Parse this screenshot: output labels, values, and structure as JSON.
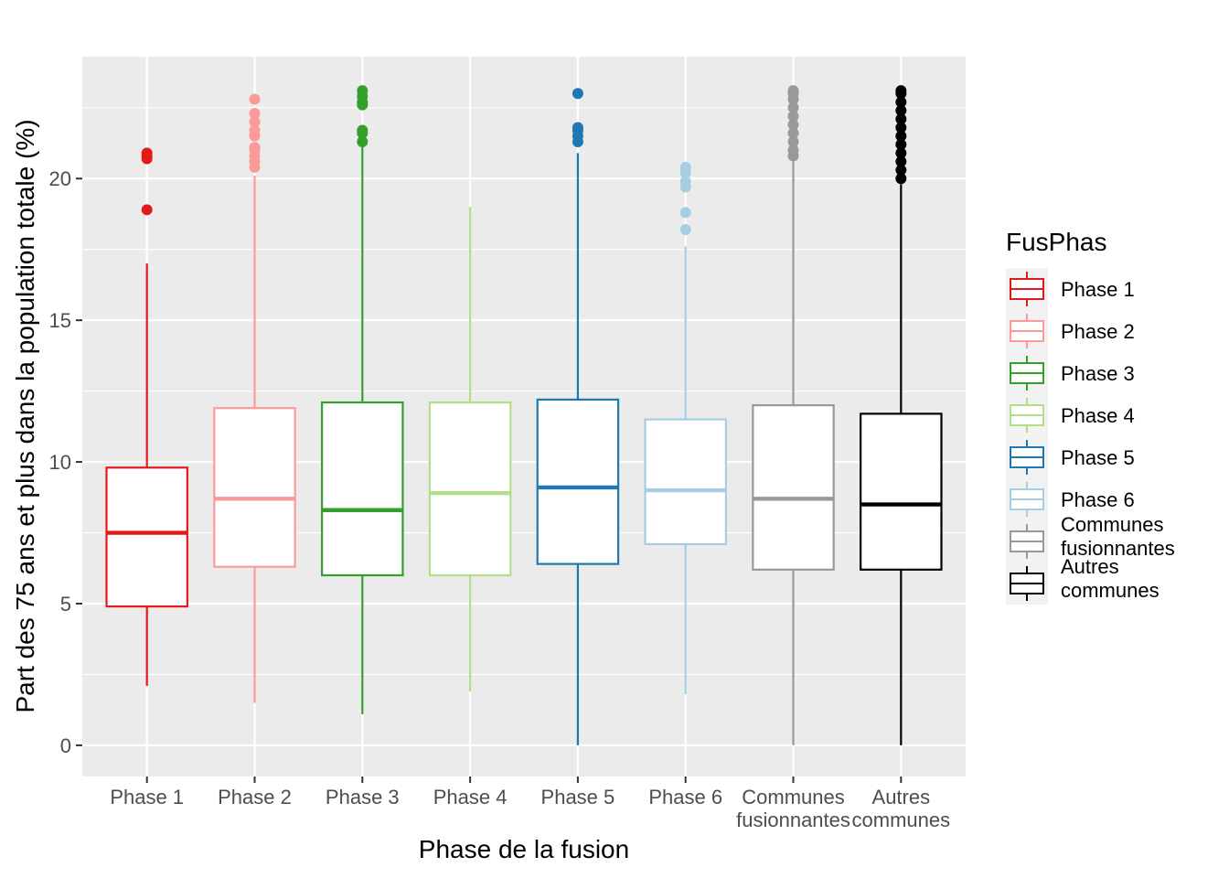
{
  "chart_data": {
    "type": "boxplot",
    "xlabel": "Phase de la fusion",
    "ylabel": "Part des 75 ans et plus dans la population totale (%)",
    "ylim": [
      -1.1,
      24.3
    ],
    "yticks": [
      0,
      5,
      10,
      15,
      20
    ],
    "grid": true,
    "legend": {
      "title": "FusPhas",
      "placement": "right",
      "entries": [
        [
          "Phase 1"
        ],
        [
          "Phase 2"
        ],
        [
          "Phase 3"
        ],
        [
          "Phase 4"
        ],
        [
          "Phase 5"
        ],
        [
          "Phase 6"
        ],
        [
          "Communes",
          "fusionnantes"
        ],
        [
          "Autres",
          "communes"
        ]
      ]
    },
    "categories": [
      {
        "label": [
          "Phase 1"
        ],
        "color": "#E31A1C",
        "whisker_low": 2.1,
        "q1": 4.9,
        "median": 7.5,
        "q3": 9.8,
        "whisker_high": 17.0,
        "outliers": [
          18.9,
          20.7,
          20.8,
          20.9
        ]
      },
      {
        "label": [
          "Phase 2"
        ],
        "color": "#FB9A99",
        "whisker_low": 1.5,
        "q1": 6.3,
        "median": 8.7,
        "q3": 11.9,
        "whisker_high": 20.1,
        "outliers": [
          20.4,
          20.6,
          20.8,
          21.0,
          21.1,
          21.5,
          21.7,
          22.0,
          22.3,
          22.8
        ]
      },
      {
        "label": [
          "Phase 3"
        ],
        "color": "#33A02C",
        "whisker_low": 1.1,
        "q1": 6.0,
        "median": 8.3,
        "q3": 12.1,
        "whisker_high": 21.2,
        "outliers": [
          21.3,
          21.6,
          21.7,
          22.6,
          22.7,
          22.9,
          23.1
        ]
      },
      {
        "label": [
          "Phase 4"
        ],
        "color": "#B2DF8A",
        "whisker_low": 1.9,
        "q1": 6.0,
        "median": 8.9,
        "q3": 12.1,
        "whisker_high": 19.0,
        "outliers": []
      },
      {
        "label": [
          "Phase 5"
        ],
        "color": "#1F78B4",
        "whisker_low": 0.0,
        "q1": 6.4,
        "median": 9.1,
        "q3": 12.2,
        "whisker_high": 20.9,
        "outliers": [
          21.3,
          21.5,
          21.7,
          21.8,
          23.0
        ]
      },
      {
        "label": [
          "Phase 6"
        ],
        "color": "#A6CEE3",
        "whisker_low": 1.8,
        "q1": 7.1,
        "median": 9.0,
        "q3": 11.5,
        "whisker_high": 17.6,
        "outliers": [
          18.2,
          18.8,
          19.7,
          19.9,
          20.2,
          20.4
        ]
      },
      {
        "label": [
          "Communes",
          "fusionnantes"
        ],
        "color": "#999999",
        "whisker_low": 0.0,
        "q1": 6.2,
        "median": 8.7,
        "q3": 12.0,
        "whisker_high": 20.6,
        "outliers": [
          20.8,
          21.0,
          21.3,
          21.6,
          21.9,
          22.2,
          22.5,
          22.8,
          23.0,
          23.1
        ]
      },
      {
        "label": [
          "Autres",
          "communes"
        ],
        "color": "#000000",
        "whisker_low": 0.0,
        "q1": 6.2,
        "median": 8.5,
        "q3": 11.7,
        "whisker_high": 19.8,
        "outliers": [
          20.0,
          20.3,
          20.6,
          20.9,
          21.2,
          21.5,
          21.8,
          22.1,
          22.4,
          22.7,
          23.0,
          23.1
        ]
      }
    ]
  }
}
